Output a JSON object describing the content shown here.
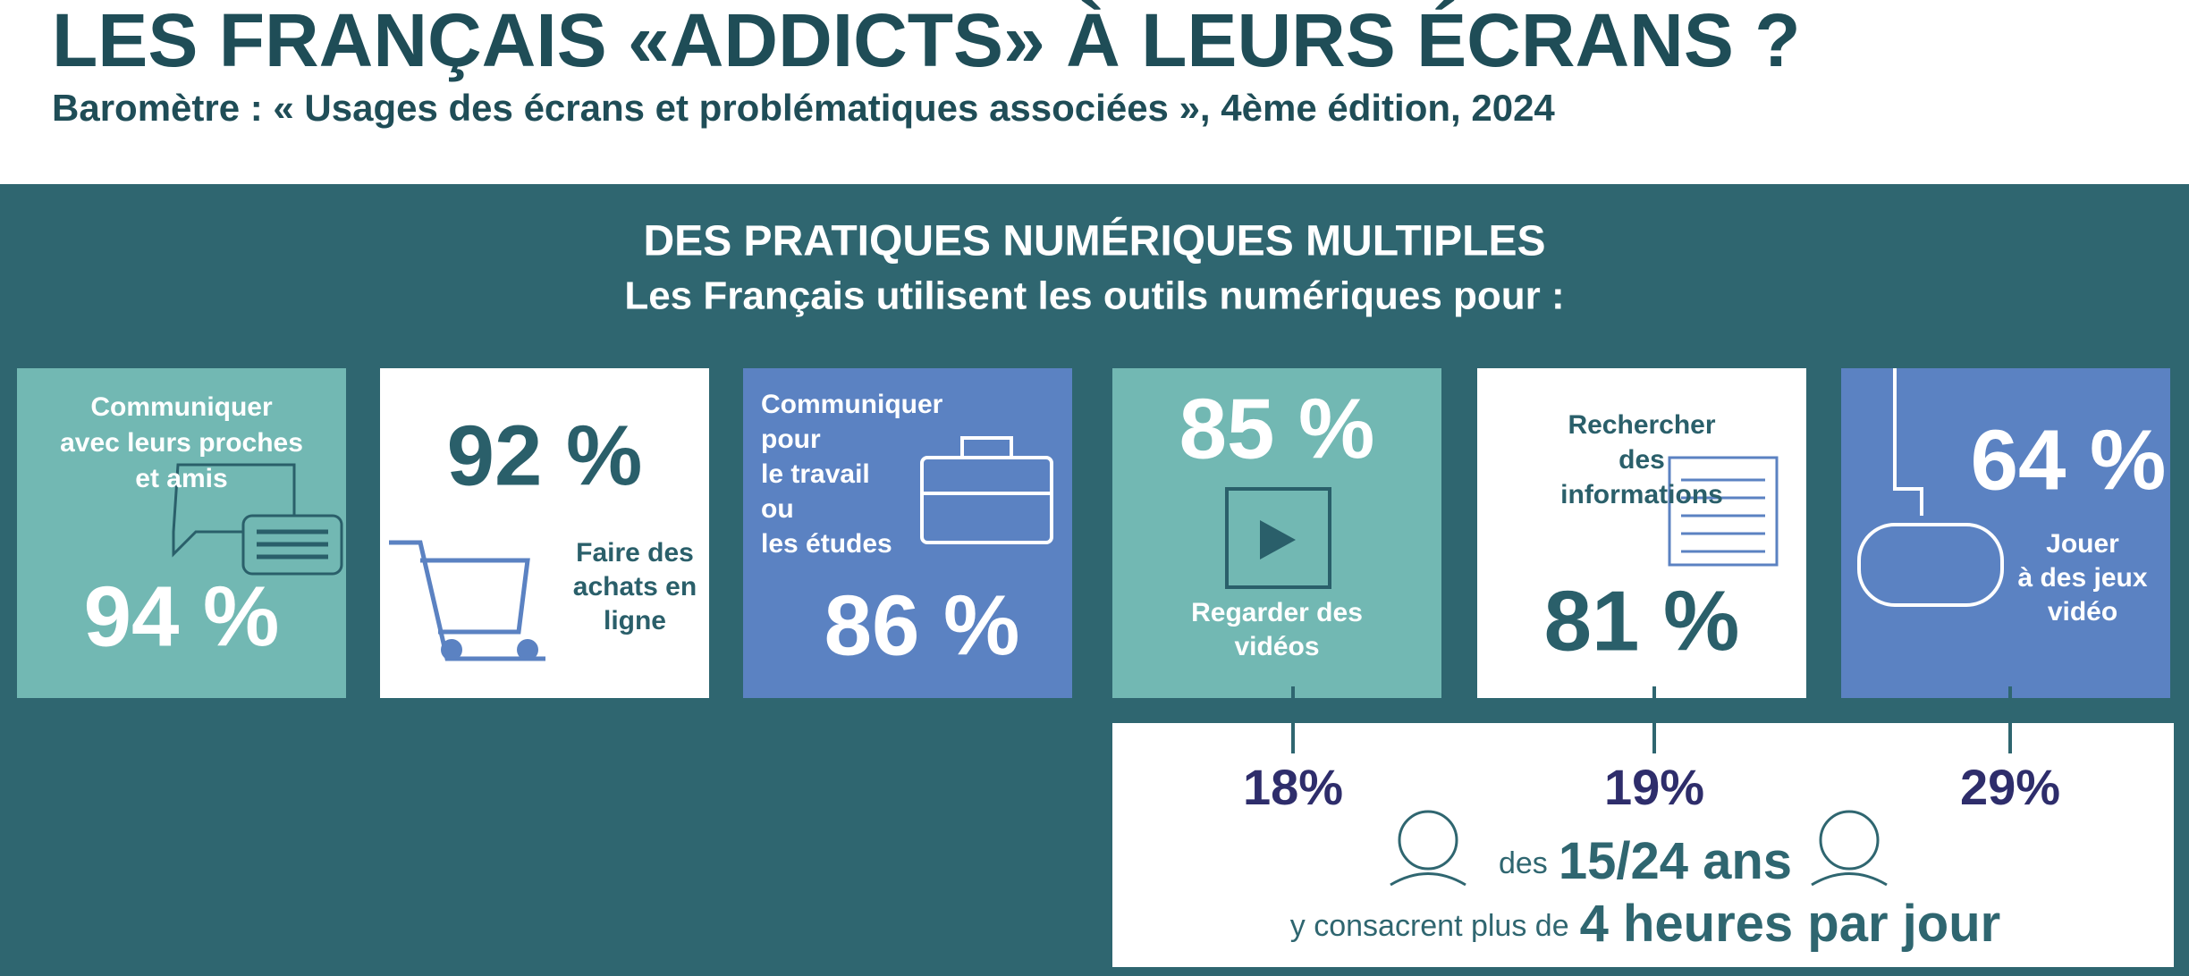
{
  "header": {
    "title": "LES FRANÇAIS «ADDICTS» À LEURS ÉCRANS ?",
    "subtitle": "Baromètre : « Usages des écrans et problématiques associées », 4ème édition, 2024"
  },
  "section": {
    "title": "DES PRATIQUES NUMÉRIQUES MULTIPLES",
    "subtitle": "Les Français utilisent les outils numériques pour :"
  },
  "tiles": [
    {
      "label_lines": [
        "Communiquer",
        "avec leurs proches",
        "et  amis"
      ],
      "value": "94 %"
    },
    {
      "label_lines": [
        "Faire des",
        "achats en",
        "ligne"
      ],
      "value": "92 %"
    },
    {
      "label_lines": [
        "Communiquer",
        "pour",
        "le travail",
        "ou",
        "les études"
      ],
      "value": "86 %"
    },
    {
      "label_lines": [
        "Regarder des",
        "vidéos"
      ],
      "value": "85 %"
    },
    {
      "label_lines": [
        "Rechercher",
        "des",
        "informations"
      ],
      "value": "81 %"
    },
    {
      "label_lines": [
        "Jouer",
        "à des jeux",
        "vidéo"
      ],
      "value": "64 %"
    }
  ],
  "youth": {
    "values": [
      "18%",
      "19%",
      "29%"
    ],
    "line1_prefix": "des",
    "line1_emphasis": "15/24 ans",
    "line2_prefix": "y consacrent plus de",
    "line2_emphasis": "4 heures par jour"
  }
}
